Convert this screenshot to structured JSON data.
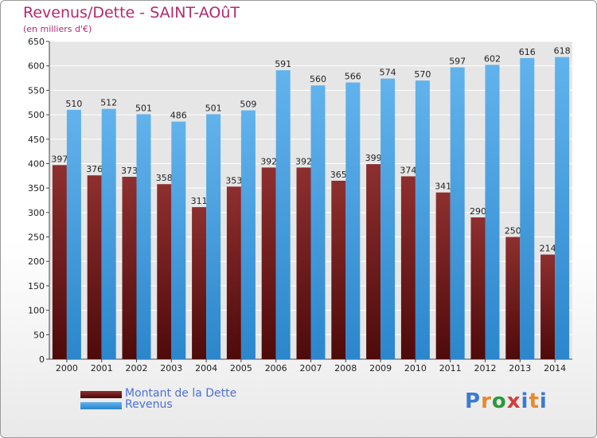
{
  "chart_data": {
    "type": "bar",
    "title": "Revenus/Dette - SAINT-AOûT",
    "subtitle": "(en milliers d'€)",
    "categories": [
      "2000",
      "2001",
      "2002",
      "2003",
      "2004",
      "2005",
      "2006",
      "2007",
      "2008",
      "2009",
      "2010",
      "2011",
      "2012",
      "2013",
      "2014"
    ],
    "series": [
      {
        "name": "Montant de la Dette",
        "color": "#7a1e1e",
        "values": [
          397,
          376,
          373,
          358,
          311,
          353,
          392,
          392,
          365,
          399,
          374,
          341,
          290,
          250,
          214
        ]
      },
      {
        "name": "Revenus",
        "color": "#3f9be0",
        "values": [
          510,
          512,
          501,
          486,
          501,
          509,
          591,
          560,
          566,
          574,
          570,
          597,
          602,
          616,
          618
        ]
      }
    ],
    "ylim": [
      0,
      650
    ],
    "yticks": [
      0,
      50,
      100,
      150,
      200,
      250,
      300,
      350,
      400,
      450,
      500,
      550,
      600,
      650
    ],
    "grid": true,
    "legend_position": "bottom-left"
  },
  "logo": {
    "text": "Proxiti",
    "colors": [
      "#3b7bd0",
      "#e58a2e",
      "#2a9a3c",
      "#d83c3c",
      "#3b7bd0",
      "#e58a2e",
      "#3b7bd0"
    ]
  }
}
